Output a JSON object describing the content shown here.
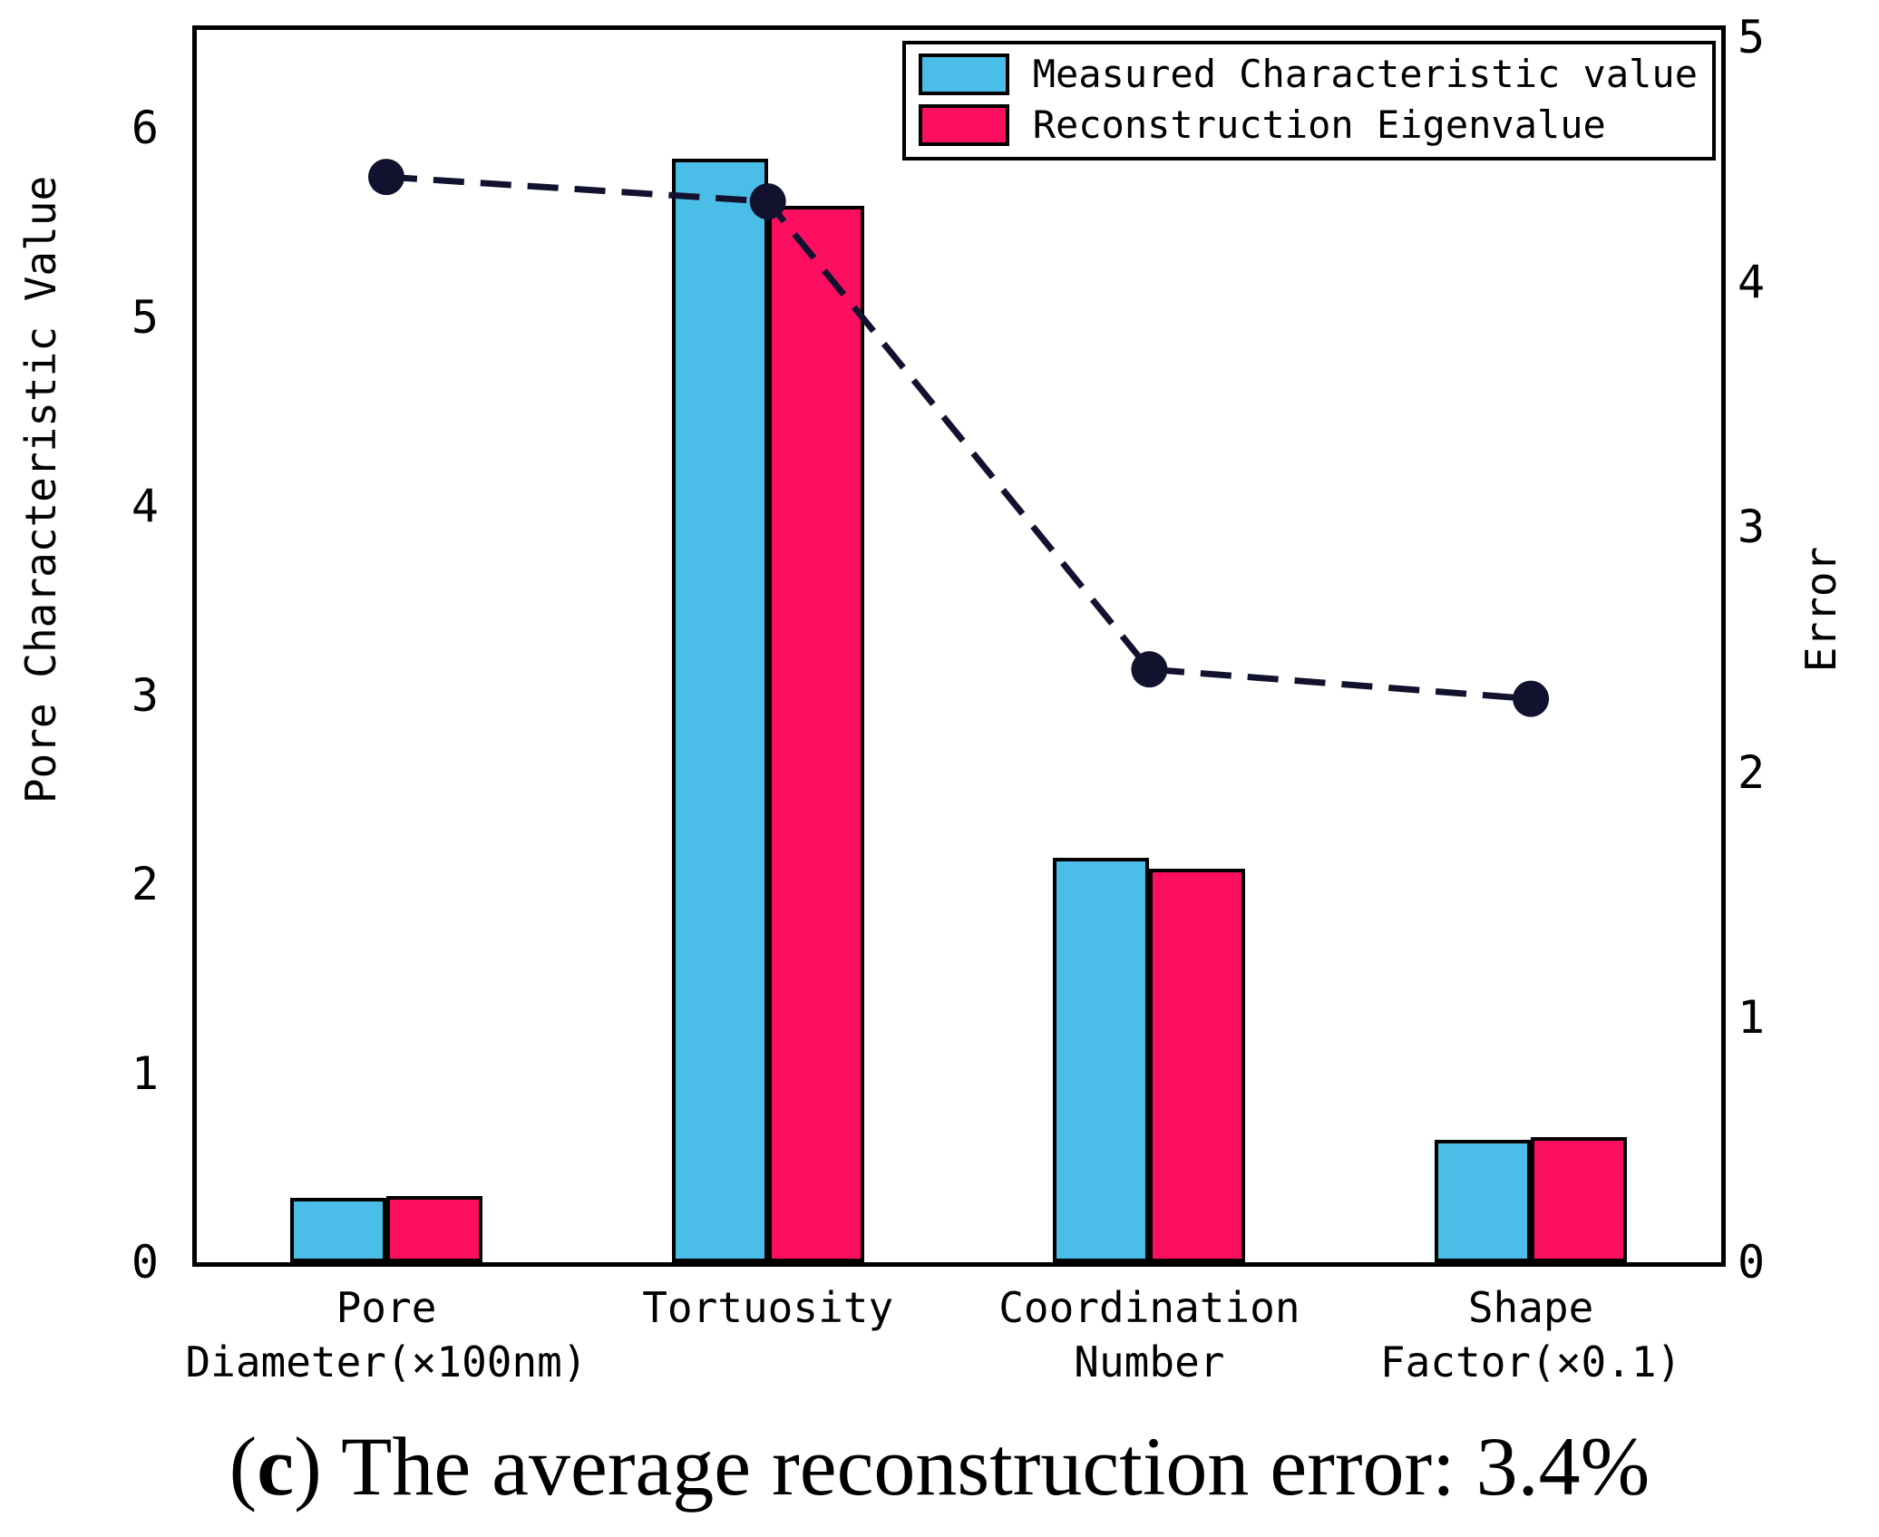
{
  "chart_data": {
    "type": "bar",
    "title": "(c) The average reconstruction error: 3.4%",
    "categories": [
      "Pore\nDiameter(×100nm)",
      "Tortuosity",
      "Coordination\nNumber",
      "Shape\nFactor(×0.1)"
    ],
    "series": [
      {
        "name": "Measured Characteristic value",
        "color": "#4bbde9",
        "values": [
          0.34,
          5.84,
          2.14,
          0.65
        ]
      },
      {
        "name": "Reconstruction Eigenvalue",
        "color": "#fc0f60",
        "values": [
          0.35,
          5.59,
          2.08,
          0.66
        ]
      }
    ],
    "line_series": {
      "name": "Error",
      "axis": "right",
      "color": "#12122e",
      "values": [
        4.43,
        4.33,
        2.42,
        2.3
      ]
    },
    "left_axis": {
      "label": "Pore Characteristic Value",
      "ticks": [
        0,
        1,
        2,
        3,
        4,
        5,
        6
      ],
      "min": 0,
      "max": 6.52
    },
    "right_axis": {
      "label": "Error",
      "ticks": [
        0,
        1,
        2,
        3,
        4,
        5
      ],
      "min": 0,
      "max": 5.03
    },
    "legend_position": "top-right",
    "grid": false
  },
  "caption": {
    "open": "(",
    "letter": "c",
    "rest": ") The average reconstruction error: 3.4%"
  }
}
